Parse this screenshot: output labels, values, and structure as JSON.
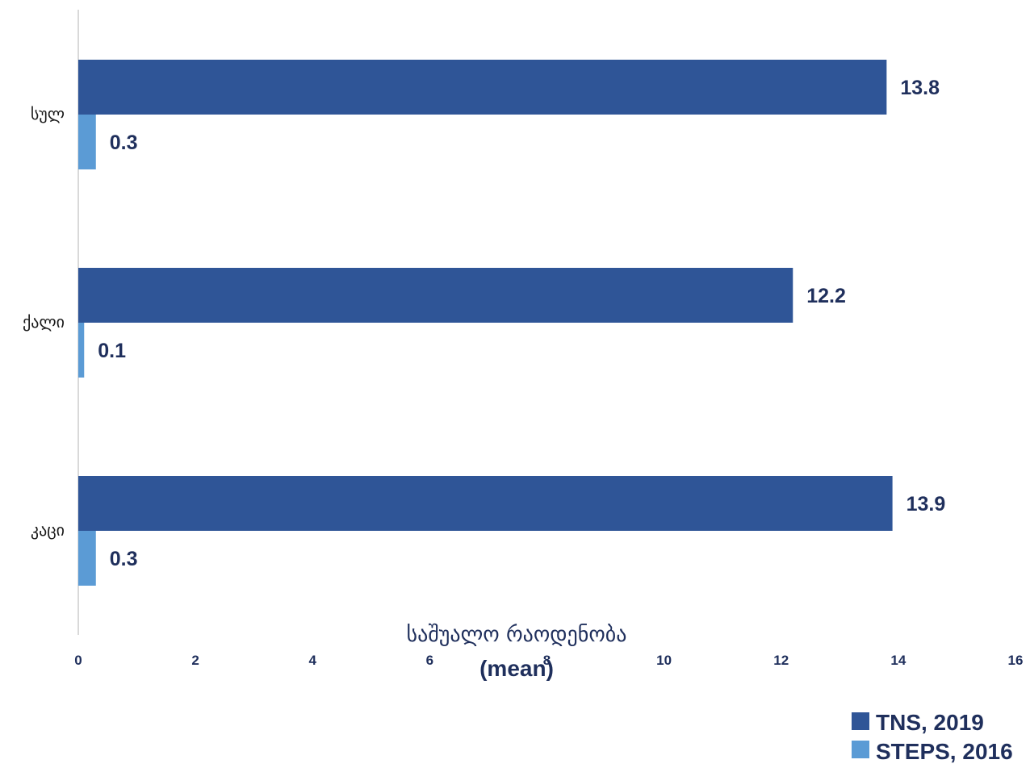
{
  "chart_data": {
    "type": "bar",
    "orientation": "horizontal",
    "categories": [
      "სულ",
      "ქალი",
      "კაცი"
    ],
    "series": [
      {
        "name": "TNS, 2019",
        "values": [
          13.8,
          12.2,
          13.9
        ],
        "color": "#2f5597"
      },
      {
        "name": "STEPS, 2016",
        "values": [
          0.3,
          0.1,
          0.3
        ],
        "color": "#5b9bd5"
      }
    ],
    "xlim": [
      0,
      16
    ],
    "xticks": [
      "0",
      "2",
      "4",
      "6",
      "8",
      "10",
      "12",
      "14",
      "16"
    ],
    "xlabel": "საშუალო რაოდენობა",
    "xlabel_sub": "(mean)",
    "ylabel": "",
    "title": "",
    "grid": false,
    "legend_position": "bottom-right"
  }
}
